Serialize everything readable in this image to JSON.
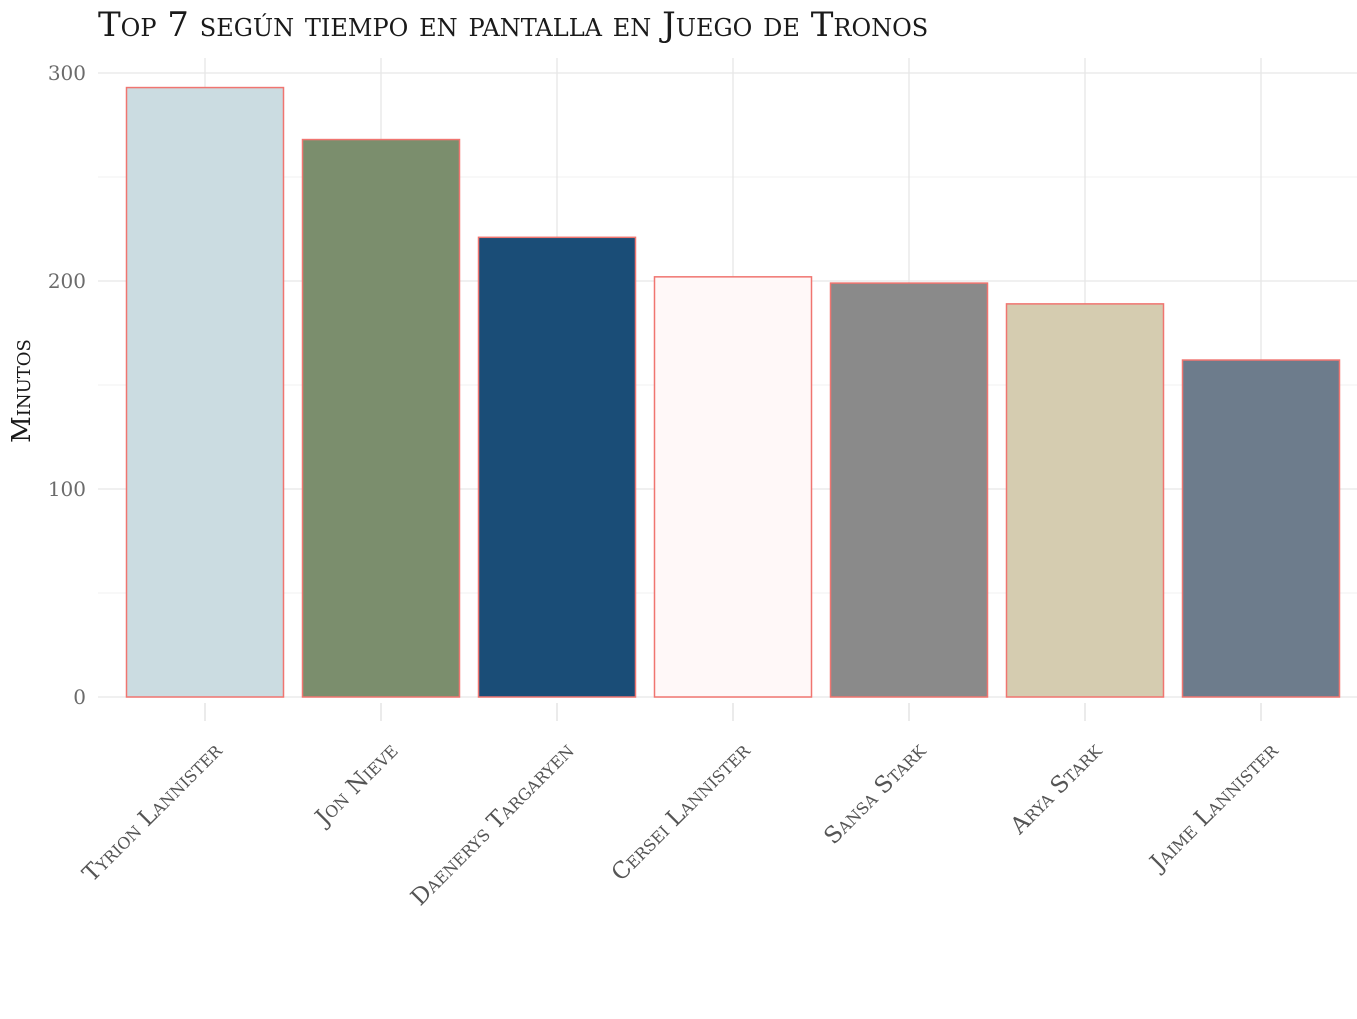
{
  "chart_data": {
    "type": "bar",
    "title": "Top 7 según tiempo en pantalla en Juego de Tronos",
    "xlabel": "",
    "ylabel": "Minutos",
    "categories": [
      "Tyrion Lannister",
      "Jon Nieve",
      "Daenerys Targaryen",
      "Cersei Lannister",
      "Sansa Stark",
      "Arya Stark",
      "Jaime Lannister"
    ],
    "values": [
      293,
      268,
      221,
      202,
      199,
      189,
      162
    ],
    "bar_colors": [
      "#cbdce1",
      "#7b8e6d",
      "#1a4d77",
      "#fff8f8",
      "#8a8a8a",
      "#d5ccb0",
      "#6d7c8c"
    ],
    "bar_outline_color": "#f07570",
    "ylim": [
      0,
      300
    ],
    "yticks": [
      0,
      100,
      200,
      300
    ],
    "grid": true,
    "legend": "none"
  }
}
